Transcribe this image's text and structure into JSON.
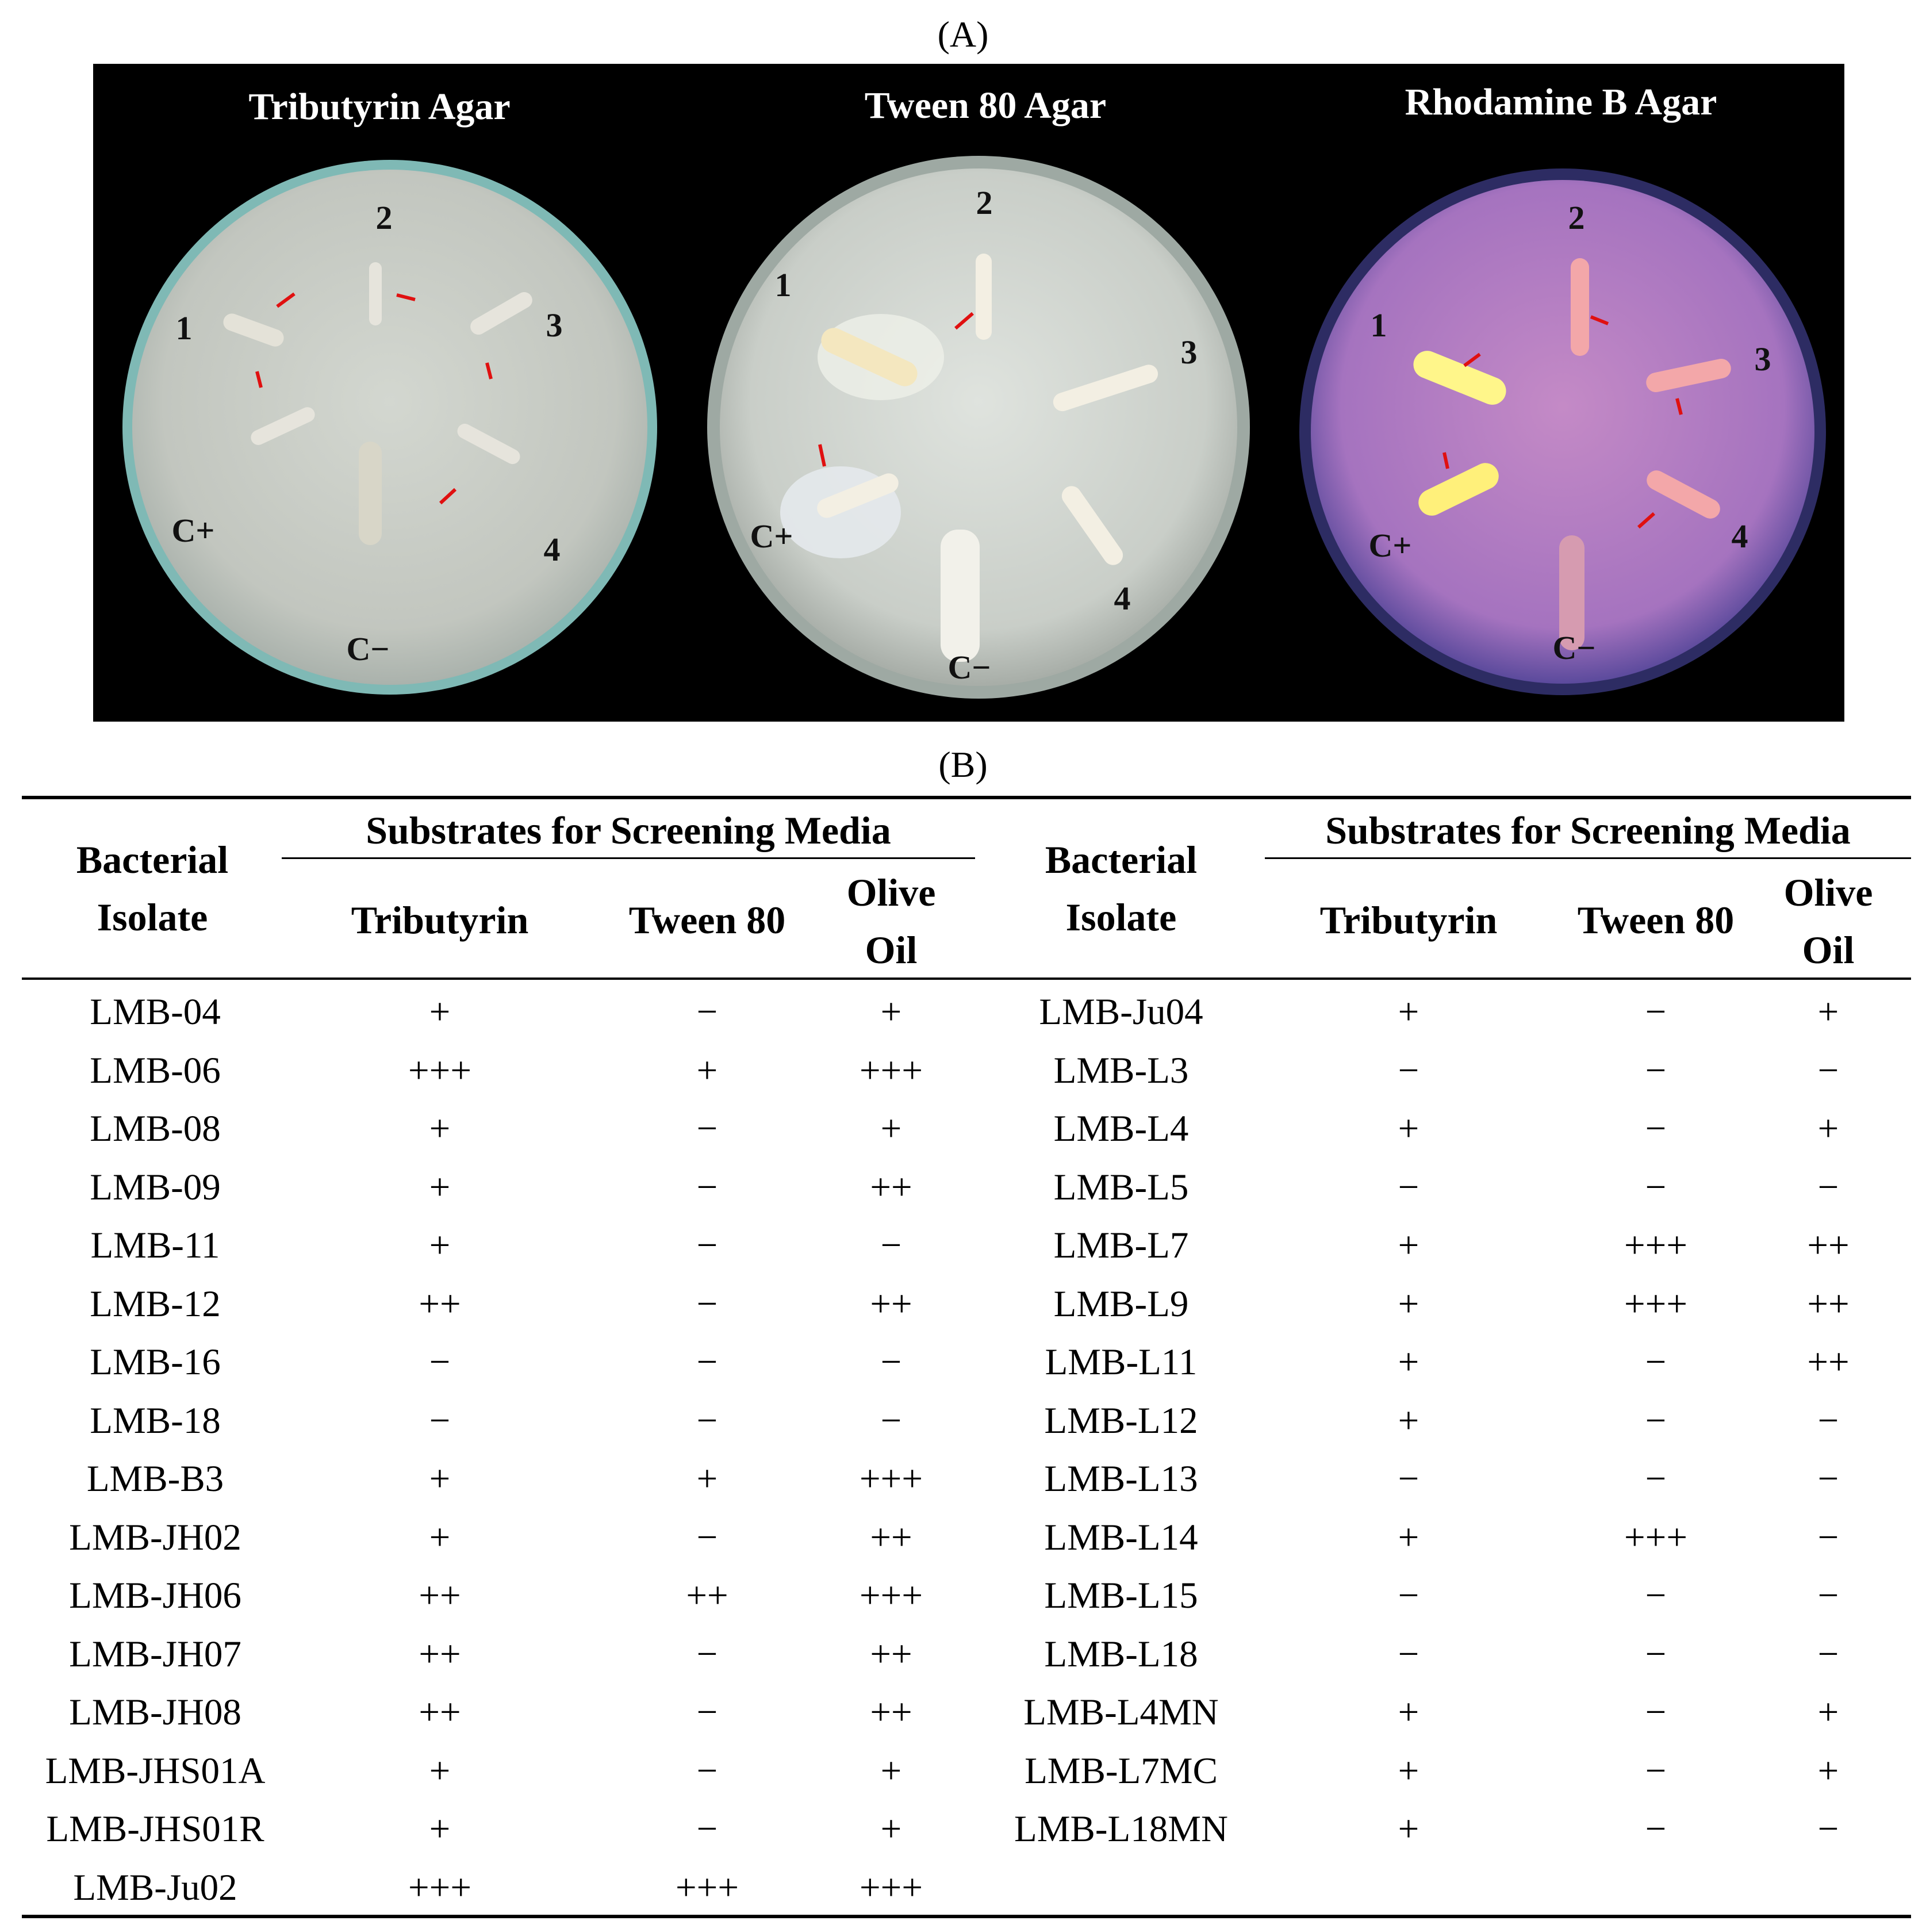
{
  "panel_a": {
    "label": "(A)",
    "plates": [
      {
        "title": "Tributyrin Agar",
        "markers": [
          "1",
          "2",
          "3",
          "4",
          "C+",
          "C−"
        ]
      },
      {
        "title": "Tween 80 Agar",
        "markers": [
          "1",
          "2",
          "3",
          "4",
          "C+",
          "C−"
        ]
      },
      {
        "title": "Rhodamine B Agar",
        "markers": [
          "1",
          "2",
          "3",
          "4",
          "C+",
          "C−"
        ]
      }
    ]
  },
  "panel_b": {
    "label": "(B)",
    "header": {
      "isolate": "Bacterial Isolate",
      "group": "Substrates for Screening Media",
      "tributyrin": "Tributyrin",
      "tween": "Tween 80",
      "olive": "Olive Oil"
    },
    "left_rows": [
      [
        "LMB-04",
        "+",
        "−",
        "+"
      ],
      [
        "LMB-06",
        "+++",
        "+",
        "+++"
      ],
      [
        "LMB-08",
        "+",
        "−",
        "+"
      ],
      [
        "LMB-09",
        "+",
        "−",
        "++"
      ],
      [
        "LMB-11",
        "+",
        "−",
        "−"
      ],
      [
        "LMB-12",
        "++",
        "−",
        "++"
      ],
      [
        "LMB-16",
        "−",
        "−",
        "−"
      ],
      [
        "LMB-18",
        "−",
        "−",
        "−"
      ],
      [
        "LMB-B3",
        "+",
        "+",
        "+++"
      ],
      [
        "LMB-JH02",
        "+",
        "−",
        "++"
      ],
      [
        "LMB-JH06",
        "++",
        "++",
        "+++"
      ],
      [
        "LMB-JH07",
        "++",
        "−",
        "++"
      ],
      [
        "LMB-JH08",
        "++",
        "−",
        "++"
      ],
      [
        "LMB-JHS01A",
        "+",
        "−",
        "+"
      ],
      [
        "LMB-JHS01R",
        "+",
        "−",
        "+"
      ],
      [
        "LMB-Ju02",
        "+++",
        "+++",
        "+++"
      ]
    ],
    "right_rows": [
      [
        "LMB-Ju04",
        "+",
        "−",
        "+"
      ],
      [
        "LMB-L3",
        "−",
        "−",
        "−"
      ],
      [
        "LMB-L4",
        "+",
        "−",
        "+"
      ],
      [
        "LMB-L5",
        "−",
        "−",
        "−"
      ],
      [
        "LMB-L7",
        "+",
        "+++",
        "++"
      ],
      [
        "LMB-L9",
        "+",
        "+++",
        "++"
      ],
      [
        "LMB-L11",
        "+",
        "−",
        "++"
      ],
      [
        "LMB-L12",
        "+",
        "−",
        "−"
      ],
      [
        "LMB-L13",
        "−",
        "−",
        "−"
      ],
      [
        "LMB-L14",
        "+",
        "+++",
        "−"
      ],
      [
        "LMB-L15",
        "−",
        "−",
        "−"
      ],
      [
        "LMB-L18",
        "−",
        "−",
        "−"
      ],
      [
        "LMB-L4MN",
        "+",
        "−",
        "+"
      ],
      [
        "LMB-L7MC",
        "+",
        "−",
        "+"
      ],
      [
        "LMB-L18MN",
        "+",
        "−",
        "−"
      ]
    ]
  }
}
